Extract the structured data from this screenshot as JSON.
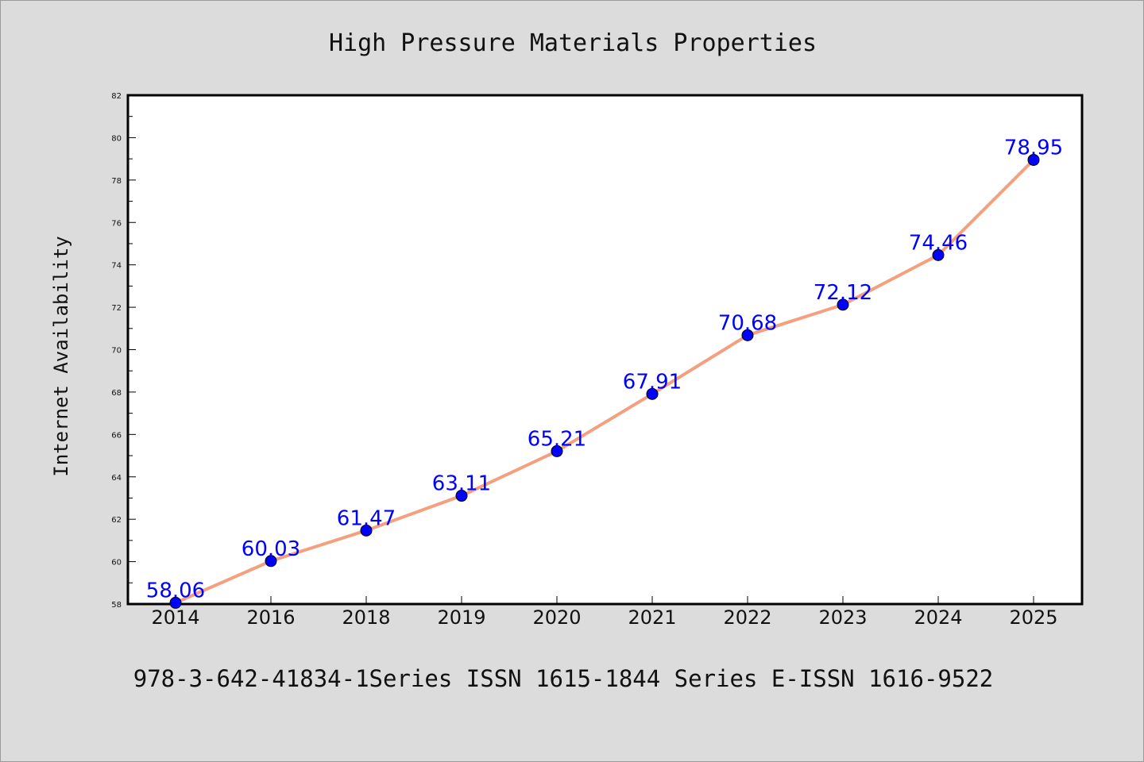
{
  "chart_data": {
    "type": "line",
    "title": "High Pressure Materials Properties",
    "xlabel": "",
    "ylabel": "Internet Availability",
    "categories": [
      "2014",
      "2016",
      "2018",
      "2019",
      "2020",
      "2021",
      "2022",
      "2023",
      "2024",
      "2025"
    ],
    "series": [
      {
        "values": [
          58.06,
          60.03,
          61.47,
          63.11,
          65.21,
          67.91,
          70.68,
          72.12,
          74.46,
          78.95
        ],
        "data_labels": [
          "58.06",
          "60.03",
          "61.47",
          "63.11",
          "65.21",
          "67.91",
          "70.68",
          "72.12",
          "74.46",
          "78.95"
        ],
        "line_color": "#f4a07e",
        "marker_color": "#0000ff"
      }
    ],
    "ylim": [
      58,
      82
    ],
    "y_ticks": [
      "58",
      "60",
      "62",
      "64",
      "66",
      "68",
      "70",
      "72",
      "74",
      "76",
      "78",
      "80",
      "82"
    ],
    "grid": false,
    "legend": "none",
    "footer": "978-3-642-41834-1Series ISSN 1615-1844 Series E-ISSN 1616-9522",
    "background_color": "#dcdcdc",
    "plot_background_color": "#ffffff"
  }
}
